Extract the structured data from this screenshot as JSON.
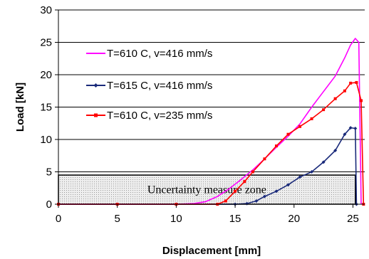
{
  "chart_data": {
    "type": "line",
    "xlabel": "Displacement [mm]",
    "ylabel": "Load [kN]",
    "xlim": [
      0,
      26
    ],
    "ylim": [
      0,
      30
    ],
    "x_ticks": [
      0,
      5,
      10,
      15,
      20,
      25
    ],
    "y_ticks": [
      0,
      5,
      10,
      15,
      20,
      25,
      30
    ],
    "grid": "horizontal",
    "legend_position": "top-left",
    "annotation": {
      "text": "Uncertainty measure zone",
      "x_range": [
        0,
        25.2
      ],
      "y_range": [
        0,
        4.5
      ]
    },
    "series": [
      {
        "name": "T=610 C, v=416 mm/s",
        "color": "#ff00ff",
        "marker": "none",
        "x": [
          0,
          5,
          10,
          11.5,
          12.5,
          13.5,
          14.5,
          15.5,
          16.5,
          17.5,
          18.5,
          19.5,
          20.5,
          21.5,
          22.5,
          23.5,
          24.3,
          24.8,
          25.2,
          25.5,
          25.7
        ],
        "y": [
          0,
          0,
          0,
          0.1,
          0.4,
          1.2,
          2.4,
          3.8,
          5.3,
          7.0,
          8.8,
          10.5,
          12.4,
          15.0,
          17.4,
          19.8,
          22.6,
          24.6,
          25.6,
          25.0,
          0
        ]
      },
      {
        "name": "T=615 C, v=416 mm/s",
        "color": "#1a2a7a",
        "marker": "diamond",
        "x": [
          0,
          5,
          10,
          15,
          16,
          16.8,
          17.5,
          18.5,
          19.5,
          20.5,
          21.5,
          22.5,
          23.5,
          24.3,
          24.8,
          25.2,
          25.3
        ],
        "y": [
          0,
          0,
          0,
          0,
          0.1,
          0.5,
          1.2,
          2.0,
          3.0,
          4.2,
          5.0,
          6.5,
          8.3,
          10.8,
          11.8,
          11.7,
          0
        ]
      },
      {
        "name": "T=610 C, v=235 mm/s",
        "color": "#ff0000",
        "marker": "square",
        "x": [
          0,
          5,
          10,
          13.5,
          14.2,
          15,
          15.8,
          16.5,
          17.5,
          18.5,
          19.5,
          20.5,
          21.5,
          22.5,
          23.5,
          24.3,
          24.8,
          25.3,
          25.7,
          25.9
        ],
        "y": [
          0,
          0,
          0,
          0,
          0.5,
          2.0,
          3.5,
          5.0,
          7.0,
          9.0,
          10.8,
          12.0,
          13.2,
          14.6,
          16.3,
          17.5,
          18.7,
          18.8,
          16.0,
          0
        ]
      }
    ]
  }
}
